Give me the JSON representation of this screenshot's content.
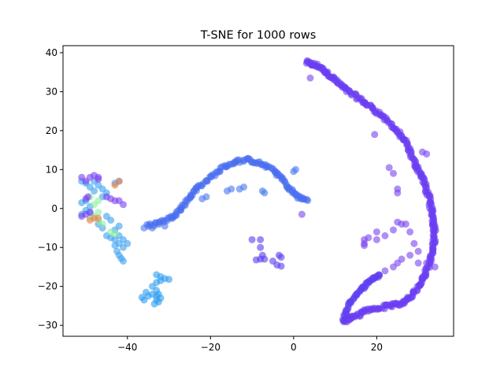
{
  "chart_data": {
    "type": "scatter",
    "title": "T-SNE for 1000 rows",
    "xlabel": "",
    "ylabel": "",
    "xlim": [
      -55.5,
      38.5
    ],
    "ylim": [
      -32.8,
      41.8
    ],
    "xticks": [
      -40,
      -20,
      0,
      20
    ],
    "yticks": [
      -30,
      -20,
      -10,
      0,
      10,
      20,
      30,
      40
    ],
    "xtick_labels": [
      "−40",
      "−20",
      "0",
      "20"
    ],
    "ytick_labels": [
      "−30",
      "−20",
      "−10",
      "0",
      "10",
      "20",
      "30",
      "40"
    ],
    "grid": false,
    "legend": "none",
    "point_alpha": 0.6,
    "colormap": "rainbow",
    "clusters": [
      {
        "shape": "curve",
        "color": "#6a3ef2",
        "path": [
          [
            3,
            37.5
          ],
          [
            6,
            36.5
          ],
          [
            9,
            34
          ],
          [
            12,
            31
          ],
          [
            16,
            28
          ],
          [
            20,
            25
          ],
          [
            24,
            21
          ],
          [
            27,
            17
          ],
          [
            29,
            12
          ],
          [
            31,
            8
          ],
          [
            32.5,
            3
          ],
          [
            33.5,
            -2
          ],
          [
            34,
            -6
          ],
          [
            33.5,
            -11
          ],
          [
            32,
            -16
          ],
          [
            30,
            -20
          ],
          [
            27,
            -24
          ],
          [
            23,
            -25
          ],
          [
            18,
            -26
          ],
          [
            14,
            -28
          ],
          [
            12,
            -29
          ]
        ],
        "points_per_segment": 16,
        "jitter": 0.7,
        "size": 4.5
      },
      {
        "shape": "curve",
        "color": "#6140f0",
        "path": [
          [
            12,
            -28.5
          ],
          [
            13,
            -25
          ],
          [
            15,
            -22
          ],
          [
            17,
            -20
          ],
          [
            19,
            -18
          ],
          [
            21,
            -17
          ]
        ],
        "points_per_segment": 10,
        "jitter": 0.5,
        "size": 4.5
      },
      {
        "shape": "curve",
        "color": "#4a6ef0",
        "path": [
          [
            -35,
            -4.5
          ],
          [
            -32,
            -3.5
          ],
          [
            -29,
            -2
          ],
          [
            -27,
            0
          ],
          [
            -25,
            3
          ],
          [
            -23,
            5.5
          ],
          [
            -20,
            8
          ],
          [
            -17,
            10.5
          ],
          [
            -14,
            12
          ],
          [
            -11,
            12.5
          ],
          [
            -8,
            11.5
          ],
          [
            -5,
            10
          ],
          [
            -3,
            8
          ],
          [
            -1,
            5
          ],
          [
            1,
            3
          ],
          [
            3.5,
            2
          ]
        ],
        "points_per_segment": 9,
        "jitter": 0.6,
        "size": 4.5
      },
      {
        "shape": "points",
        "color": "#2d9cf0",
        "points": [
          [
            -33,
            -23.5
          ],
          [
            -32.5,
            -24
          ],
          [
            -33,
            -22.5
          ],
          [
            -32,
            -23
          ],
          [
            -33.5,
            -24.5
          ],
          [
            -32.5,
            -22
          ],
          [
            -33,
            -21
          ],
          [
            -34,
            -22
          ],
          [
            -35,
            -22.5
          ],
          [
            -36,
            -23.5
          ],
          [
            -36.5,
            -22.8
          ],
          [
            -35.5,
            -21.5
          ],
          [
            -34,
            -20
          ],
          [
            -33,
            -19
          ],
          [
            -32,
            -18.5
          ],
          [
            -31,
            -18
          ],
          [
            -30,
            -18.2
          ],
          [
            -33,
            -17
          ],
          [
            -32,
            -17.5
          ]
        ]
      },
      {
        "shape": "points",
        "color": "#5b3cf0",
        "points": [
          [
            -8,
            -8
          ],
          [
            -10,
            -8
          ],
          [
            -8,
            -10
          ],
          [
            -7.5,
            -12
          ],
          [
            -8,
            -13
          ],
          [
            -9,
            -13.2
          ],
          [
            -7,
            -13
          ],
          [
            -5,
            -13.5
          ],
          [
            -4,
            -14.5
          ],
          [
            -3,
            -14.8
          ],
          [
            -3,
            -12.5
          ],
          [
            -3.5,
            -12
          ]
        ]
      },
      {
        "shape": "points",
        "color": "#7a42f0",
        "points": [
          [
            17,
            -8
          ],
          [
            17,
            -9.5
          ],
          [
            18,
            -7.5
          ],
          [
            17,
            -9
          ],
          [
            20,
            -6
          ],
          [
            24,
            -5.5
          ],
          [
            22,
            -7
          ],
          [
            20,
            -8
          ],
          [
            26,
            -4
          ],
          [
            25,
            -3.5
          ],
          [
            28,
            -6
          ],
          [
            29,
            -9
          ],
          [
            30,
            -11
          ],
          [
            28,
            -12
          ],
          [
            26,
            -13
          ],
          [
            25,
            -14
          ],
          [
            24,
            -15
          ],
          [
            22,
            -16
          ],
          [
            23,
            10.5
          ],
          [
            24,
            9
          ],
          [
            25,
            5
          ],
          [
            25,
            4
          ],
          [
            19.5,
            19
          ],
          [
            28,
            14
          ],
          [
            32,
            14
          ],
          [
            31,
            14.5
          ],
          [
            27,
            -4
          ],
          [
            32,
            -14
          ],
          [
            34,
            -15
          ],
          [
            30,
            -14
          ],
          [
            4,
            33.5
          ],
          [
            2,
            -1.5
          ]
        ]
      },
      {
        "shape": "points",
        "color": "#4a78f0",
        "points": [
          [
            0,
            9.5
          ],
          [
            0.5,
            10
          ],
          [
            -7,
            4
          ],
          [
            -7.5,
            4.5
          ],
          [
            -13,
            5
          ],
          [
            -12,
            5.5
          ],
          [
            -15,
            5
          ],
          [
            -16,
            4.5
          ],
          [
            -21,
            3
          ],
          [
            -22,
            2.5
          ],
          [
            -34,
            -5
          ],
          [
            -36,
            -5
          ],
          [
            -31,
            -4.5
          ]
        ]
      },
      {
        "shape": "points",
        "color": "#3aa0f0",
        "points": [
          [
            -42,
            -12
          ],
          [
            -41.5,
            -12.8
          ],
          [
            -41,
            -13.5
          ],
          [
            -42.5,
            -11
          ],
          [
            -41,
            -10
          ],
          [
            -40,
            -9
          ],
          [
            -41,
            -8
          ],
          [
            -42,
            -9
          ],
          [
            -43,
            -9.5
          ],
          [
            -43,
            -8
          ],
          [
            -42,
            -7
          ],
          [
            -44,
            -7.5
          ],
          [
            -45,
            -7
          ],
          [
            -46,
            -5
          ],
          [
            -47,
            -4
          ],
          [
            -45,
            -2
          ],
          [
            -44,
            -3
          ],
          [
            -46,
            3
          ],
          [
            -45,
            4
          ],
          [
            -46,
            5
          ],
          [
            -47,
            6
          ],
          [
            -48,
            7
          ],
          [
            -50,
            6.5
          ],
          [
            -51,
            7
          ],
          [
            -49,
            5.5
          ],
          [
            -48,
            4.5
          ],
          [
            -43,
            6.5
          ],
          [
            -42,
            7
          ],
          [
            -50,
            2
          ],
          [
            -51,
            1.5
          ],
          [
            -50,
            -0.5
          ],
          [
            -49,
            0.5
          ],
          [
            -51,
            -1.5
          ],
          [
            -49,
            -1
          ],
          [
            -42,
            -4.5
          ],
          [
            -43,
            -5.5
          ]
        ]
      },
      {
        "shape": "points",
        "color": "#88f0a0",
        "points": [
          [
            -48,
            -2
          ],
          [
            -47,
            -1
          ],
          [
            -49,
            -2.5
          ],
          [
            -47,
            -3
          ],
          [
            -46,
            -4
          ],
          [
            -44,
            -6
          ],
          [
            -43,
            -6.5
          ],
          [
            -47,
            2
          ],
          [
            -48,
            1
          ],
          [
            -49,
            3
          ]
        ]
      },
      {
        "shape": "points",
        "color": "#f07e4a",
        "points": [
          [
            -48,
            -2.5
          ],
          [
            -49,
            -3
          ],
          [
            -47,
            -2.5
          ],
          [
            -42,
            7
          ],
          [
            -43,
            6
          ]
        ]
      },
      {
        "shape": "points",
        "color": "#7a40f0",
        "points": [
          [
            -49,
            8
          ],
          [
            -48,
            8.5
          ],
          [
            -47,
            8
          ],
          [
            -50,
            7
          ],
          [
            -51,
            8
          ],
          [
            -47,
            7.5
          ],
          [
            -44,
            2.5
          ],
          [
            -43,
            2
          ],
          [
            -45,
            3
          ],
          [
            -42,
            2
          ],
          [
            -49.5,
            3
          ],
          [
            -50,
            2.5
          ],
          [
            -49,
            -1
          ],
          [
            -41,
            1
          ],
          [
            -51,
            -2
          ],
          [
            -50,
            -1.5
          ]
        ]
      }
    ]
  }
}
